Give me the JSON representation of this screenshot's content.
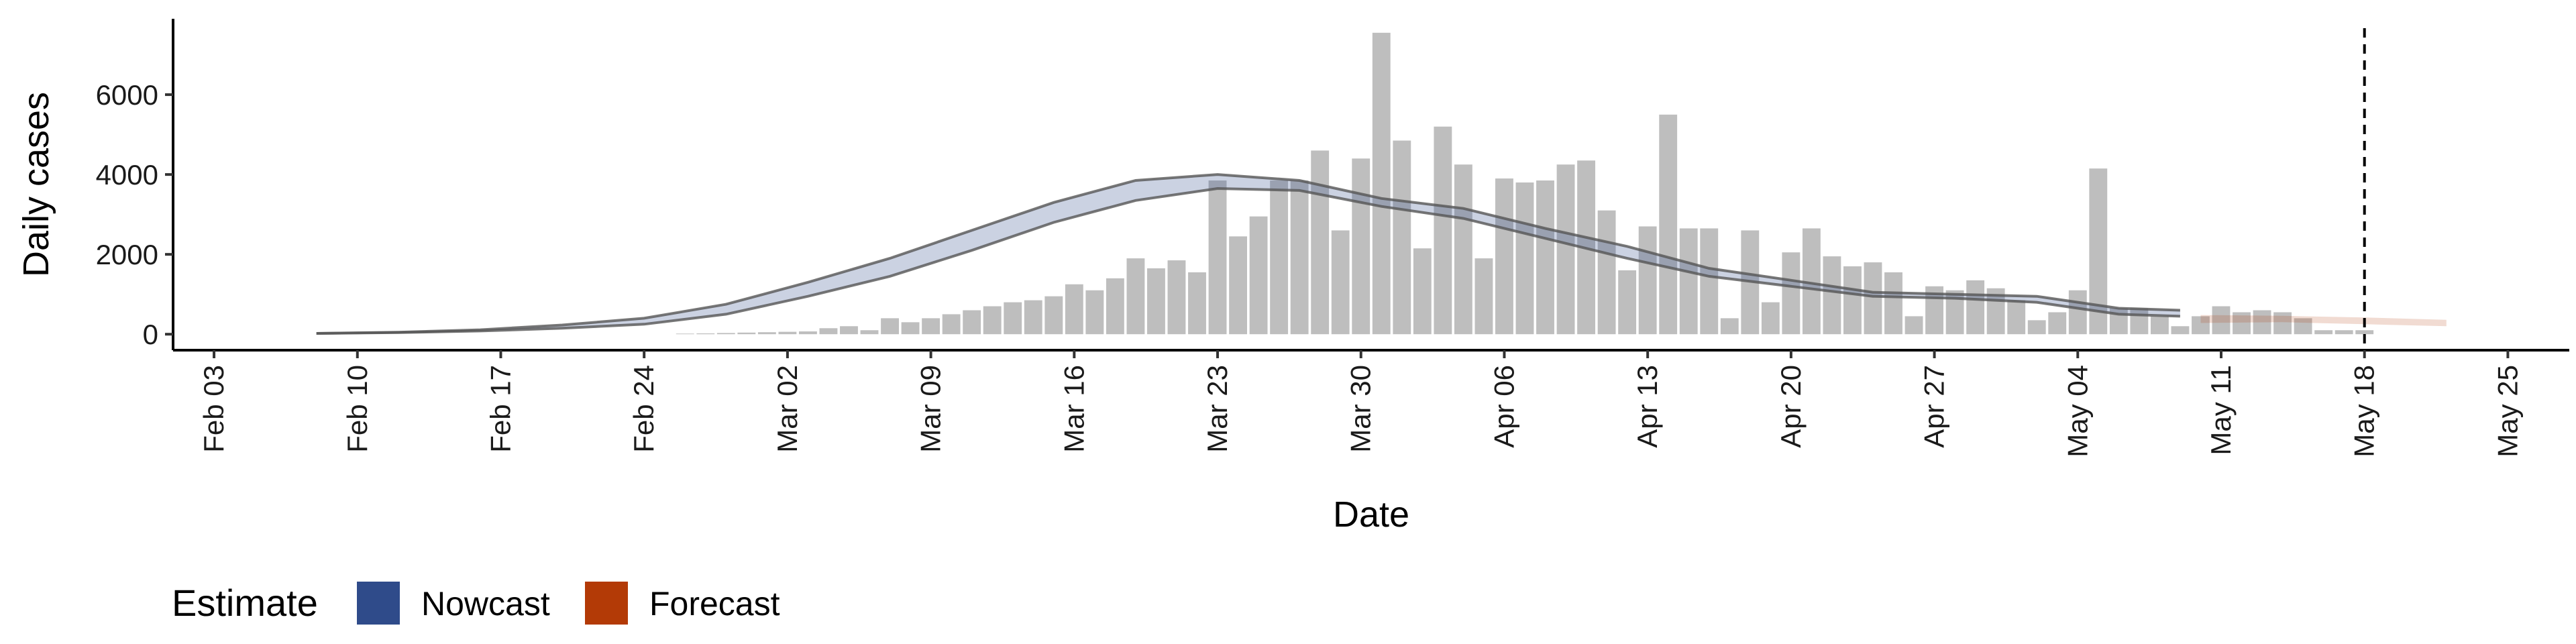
{
  "chart_data": {
    "type": "bar",
    "xlabel": "Date",
    "ylabel": "Daily cases",
    "x_range": [
      "2020-02-01",
      "2020-05-28"
    ],
    "ylim": [
      -400,
      7900
    ],
    "y_ticks": [
      0,
      2000,
      4000,
      6000
    ],
    "y_tick_labels": [
      "0",
      "2000",
      "4000",
      "6000"
    ],
    "x_ticks": [
      "2020-02-03",
      "2020-02-10",
      "2020-02-17",
      "2020-02-24",
      "2020-03-02",
      "2020-03-09",
      "2020-03-16",
      "2020-03-23",
      "2020-03-30",
      "2020-04-06",
      "2020-04-13",
      "2020-04-20",
      "2020-04-27",
      "2020-05-04",
      "2020-05-11",
      "2020-05-18",
      "2020-05-25"
    ],
    "x_tick_labels": [
      "Feb 03",
      "Feb 10",
      "Feb 17",
      "Feb 24",
      "Mar 02",
      "Mar 09",
      "Mar 16",
      "Mar 23",
      "Mar 30",
      "Apr 06",
      "Apr 13",
      "Apr 20",
      "Apr 27",
      "May 04",
      "May 11",
      "May 18",
      "May 25"
    ],
    "grid": false,
    "vline": "2020-05-18",
    "bars": {
      "dates": [
        "2020-02-26",
        "2020-02-27",
        "2020-02-28",
        "2020-02-29",
        "2020-03-01",
        "2020-03-02",
        "2020-03-03",
        "2020-03-04",
        "2020-03-05",
        "2020-03-06",
        "2020-03-07",
        "2020-03-08",
        "2020-03-09",
        "2020-03-10",
        "2020-03-11",
        "2020-03-12",
        "2020-03-13",
        "2020-03-14",
        "2020-03-15",
        "2020-03-16",
        "2020-03-17",
        "2020-03-18",
        "2020-03-19",
        "2020-03-20",
        "2020-03-21",
        "2020-03-22",
        "2020-03-23",
        "2020-03-24",
        "2020-03-25",
        "2020-03-26",
        "2020-03-27",
        "2020-03-28",
        "2020-03-29",
        "2020-03-30",
        "2020-03-31",
        "2020-04-01",
        "2020-04-02",
        "2020-04-03",
        "2020-04-04",
        "2020-04-05",
        "2020-04-06",
        "2020-04-07",
        "2020-04-08",
        "2020-04-09",
        "2020-04-10",
        "2020-04-11",
        "2020-04-12",
        "2020-04-13",
        "2020-04-14",
        "2020-04-15",
        "2020-04-16",
        "2020-04-17",
        "2020-04-18",
        "2020-04-19",
        "2020-04-20",
        "2020-04-21",
        "2020-04-22",
        "2020-04-23",
        "2020-04-24",
        "2020-04-25",
        "2020-04-26",
        "2020-04-27",
        "2020-04-28",
        "2020-04-29",
        "2020-04-30",
        "2020-05-01",
        "2020-05-02",
        "2020-05-03",
        "2020-05-04",
        "2020-05-05",
        "2020-05-06",
        "2020-05-07",
        "2020-05-08",
        "2020-05-09",
        "2020-05-10",
        "2020-05-11",
        "2020-05-12",
        "2020-05-13",
        "2020-05-14",
        "2020-05-15",
        "2020-05-16",
        "2020-05-17",
        "2020-05-18"
      ],
      "values": [
        15,
        20,
        30,
        40,
        50,
        60,
        70,
        150,
        200,
        100,
        400,
        300,
        400,
        500,
        600,
        700,
        800,
        850,
        950,
        1250,
        1100,
        1400,
        1900,
        1650,
        1850,
        1550,
        3850,
        2450,
        2950,
        3850,
        3850,
        4600,
        2600,
        4400,
        7550,
        4850,
        2150,
        5200,
        4250,
        1900,
        3900,
        3800,
        3850,
        4250,
        4350,
        3100,
        1600,
        2700,
        5500,
        2650,
        2650,
        400,
        2600,
        800,
        2050,
        2650,
        1950,
        1700,
        1800,
        1550,
        450,
        1200,
        1100,
        1350,
        1150,
        850,
        350,
        550,
        1100,
        4150,
        650,
        650,
        450,
        200,
        450,
        700,
        550,
        600,
        550,
        400,
        100,
        100,
        100
      ],
      "color": "#bebebe"
    },
    "series": [
      {
        "name": "Nowcast",
        "color": "#2f4b8a",
        "dates": [
          "2020-02-08",
          "2020-02-12",
          "2020-02-16",
          "2020-02-20",
          "2020-02-24",
          "2020-02-28",
          "2020-03-03",
          "2020-03-07",
          "2020-03-11",
          "2020-03-15",
          "2020-03-19",
          "2020-03-23",
          "2020-03-27",
          "2020-03-31",
          "2020-04-04",
          "2020-04-08",
          "2020-04-12",
          "2020-04-16",
          "2020-04-20",
          "2020-04-24",
          "2020-04-28",
          "2020-05-02",
          "2020-05-06",
          "2020-05-09"
        ],
        "lower": [
          20,
          40,
          80,
          150,
          250,
          500,
          950,
          1450,
          2100,
          2800,
          3350,
          3650,
          3600,
          3200,
          2900,
          2400,
          1900,
          1450,
          1200,
          950,
          900,
          800,
          500,
          450
        ],
        "upper": [
          20,
          50,
          110,
          230,
          400,
          750,
          1300,
          1900,
          2600,
          3300,
          3850,
          4000,
          3850,
          3400,
          3150,
          2650,
          2200,
          1650,
          1350,
          1050,
          1000,
          950,
          650,
          600
        ]
      },
      {
        "name": "Forecast",
        "color": "#b33a06",
        "dates": [
          "2020-05-10",
          "2020-05-14",
          "2020-05-18",
          "2020-05-22"
        ],
        "lower": [
          280,
          300,
          250,
          200
        ],
        "upper": [
          480,
          460,
          420,
          360
        ]
      }
    ],
    "legend": {
      "title": "Estimate",
      "position": "bottom-left",
      "items": [
        {
          "label": "Nowcast",
          "color": "#2f4b8a"
        },
        {
          "label": "Forecast",
          "color": "#b33a06"
        }
      ]
    }
  }
}
